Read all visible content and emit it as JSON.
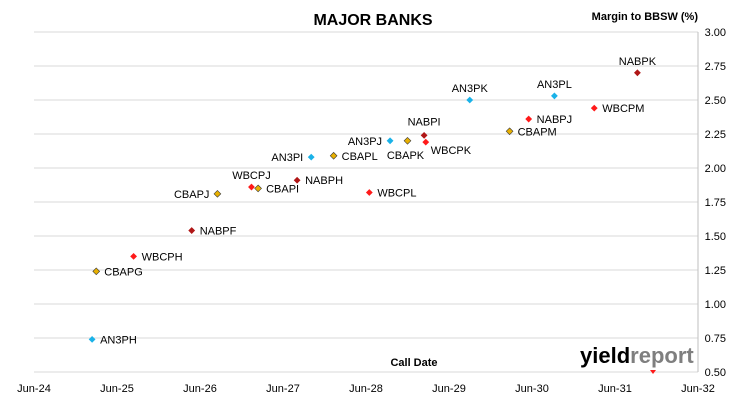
{
  "chart_data": {
    "type": "scatter",
    "title": "MAJOR BANKS",
    "xlabel": "Call Date",
    "ylabel": "Margin to BBSW (%)",
    "x_ticks": [
      "Jun-24",
      "Jun-25",
      "Jun-26",
      "Jun-27",
      "Jun-28",
      "Jun-29",
      "Jun-30",
      "Jun-31",
      "Jun-32"
    ],
    "xlim": [
      2024.5,
      2032.5
    ],
    "ylim": [
      0.5,
      3.0
    ],
    "y_ticks": [
      "0.50",
      "0.75",
      "1.00",
      "1.25",
      "1.50",
      "1.75",
      "2.00",
      "2.25",
      "2.50",
      "2.75",
      "3.00"
    ],
    "grid": "horizontal",
    "series": [
      {
        "color": "#1ab2e8",
        "points": [
          {
            "label": "AN3PH",
            "x": 2025.2,
            "y": 0.74
          },
          {
            "label": "AN3PI",
            "x": 2027.84,
            "y": 2.08
          },
          {
            "label": "AN3PJ",
            "x": 2028.79,
            "y": 2.2
          },
          {
            "label": "AN3PK",
            "x": 2029.75,
            "y": 2.5
          },
          {
            "label": "AN3PL",
            "x": 2030.77,
            "y": 2.53
          }
        ]
      },
      {
        "color": "#e8b000",
        "points": [
          {
            "label": "CBAPG",
            "x": 2025.25,
            "y": 1.24
          },
          {
            "label": "CBAPJ",
            "x": 2026.71,
            "y": 1.81
          },
          {
            "label": "CBAPI",
            "x": 2027.2,
            "y": 1.85
          },
          {
            "label": "CBAPL",
            "x": 2028.11,
            "y": 2.09
          },
          {
            "label": "CBAPK",
            "x": 2029.0,
            "y": 2.2
          },
          {
            "label": "CBAPM",
            "x": 2030.23,
            "y": 2.27
          }
        ]
      },
      {
        "color": "#ff1a1a",
        "points": [
          {
            "label": "WBCPH",
            "x": 2025.7,
            "y": 1.35
          },
          {
            "label": "WBCPJ",
            "x": 2027.12,
            "y": 1.86
          },
          {
            "label": "WBCPL",
            "x": 2028.54,
            "y": 1.82
          },
          {
            "label": "WBCPK",
            "x": 2029.22,
            "y": 2.19
          },
          {
            "label": "NABPJ",
            "x": 2030.46,
            "y": 2.36
          },
          {
            "label": "WBCPM",
            "x": 2031.25,
            "y": 2.44
          }
        ]
      },
      {
        "color": "#b01616",
        "points": [
          {
            "label": "NABPF",
            "x": 2026.4,
            "y": 1.54
          },
          {
            "label": "NABPH",
            "x": 2027.67,
            "y": 1.91
          },
          {
            "label": "NABPI",
            "x": 2029.2,
            "y": 2.24
          },
          {
            "label": "NABPK",
            "x": 2031.77,
            "y": 2.7
          }
        ]
      }
    ],
    "label_positions": {
      "AN3PH": "right",
      "AN3PI": "left",
      "AN3PJ": "left",
      "AN3PK": "top",
      "AN3PL": "top",
      "CBAPG": "right",
      "CBAPJ": "left",
      "CBAPI": "right",
      "CBAPL": "right",
      "CBAPK": "bottom-left",
      "CBAPM": "right",
      "WBCPH": "right",
      "WBCPJ": "top",
      "WBCPL": "right",
      "WBCPK": "right-low",
      "NABPJ": "right",
      "WBCPM": "right",
      "NABPF": "right",
      "NABPH": "right",
      "NABPI": "top-left",
      "NABPK": "top"
    }
  },
  "logo": {
    "part1": "yield",
    "part2": "report"
  }
}
